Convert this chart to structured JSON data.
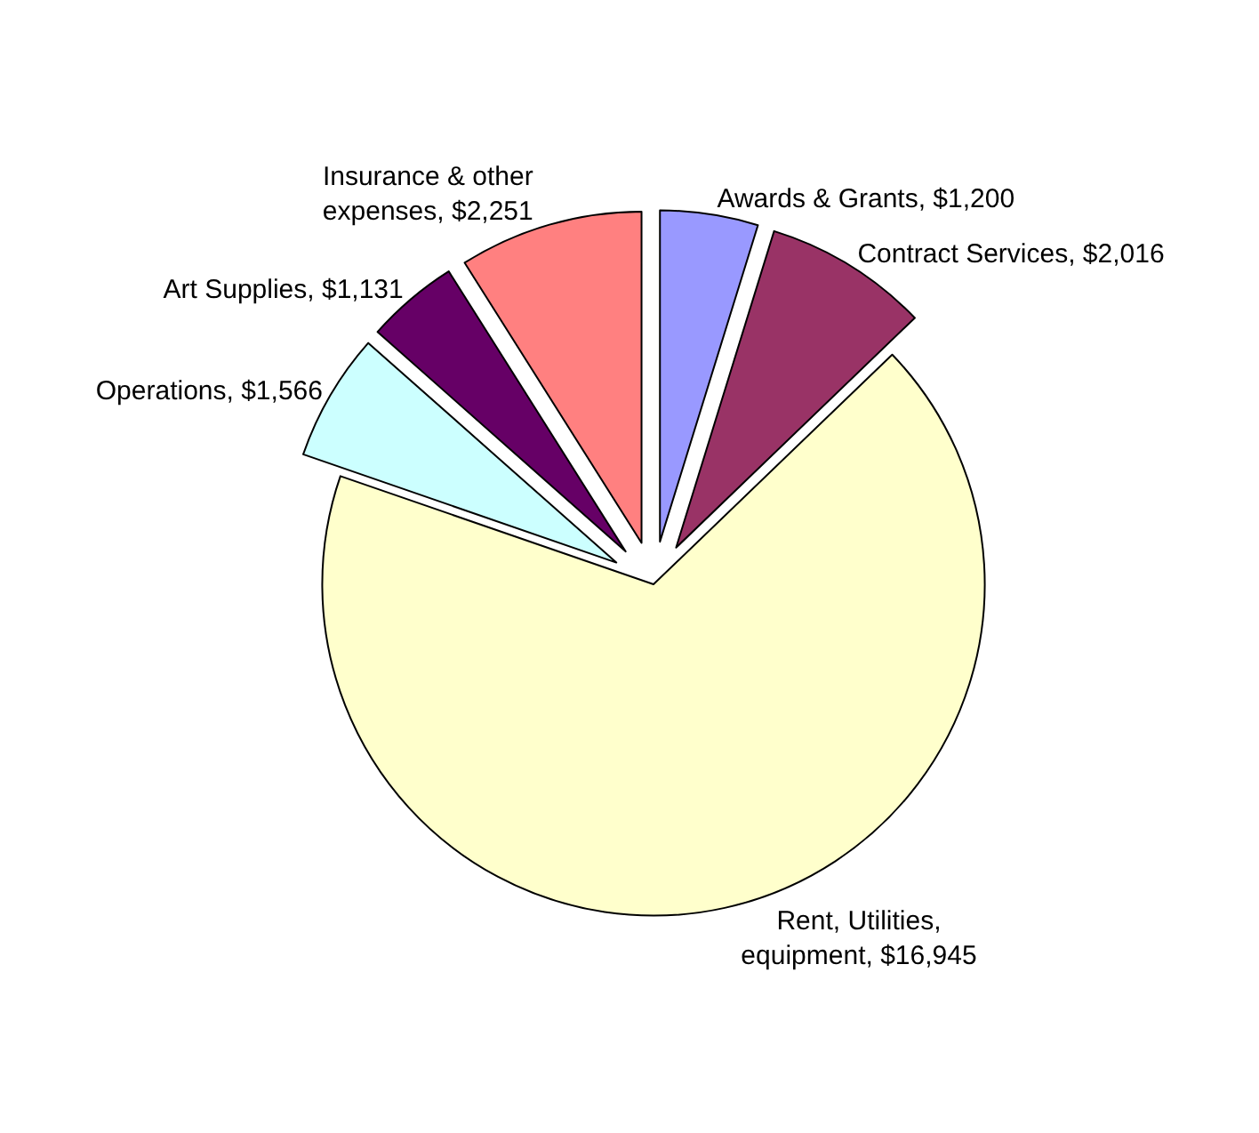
{
  "chart_data": {
    "type": "pie",
    "categories": [
      "Awards & Grants",
      "Contract Services",
      "Rent, Utilities, equipment",
      "Operations",
      "Art Supplies",
      "Insurance & other expenses"
    ],
    "values": [
      1200,
      2016,
      16945,
      1566,
      1131,
      2251
    ],
    "value_labels": [
      "$1,200",
      "$2,016",
      "$16,945",
      "$1,566",
      "$1,131",
      "$2,251"
    ],
    "colors": [
      "#9999ff",
      "#993366",
      "#ffffcc",
      "#ccffff",
      "#660066",
      "#ff8080"
    ],
    "legend": false
  }
}
